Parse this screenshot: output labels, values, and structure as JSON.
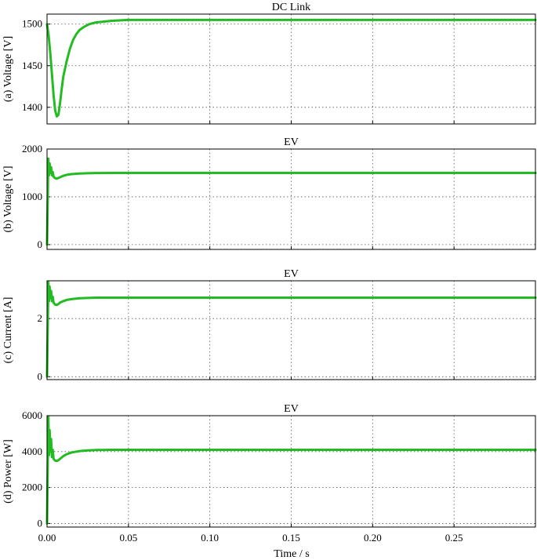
{
  "figure": {
    "xlabel": "Time / s",
    "line_color": "#22bb22"
  },
  "chart_data": [
    {
      "type": "line",
      "title": "DC Link",
      "ylabel": "(a) Voltage [V]",
      "xlim": [
        0,
        0.3
      ],
      "ylim": [
        1380,
        1512
      ],
      "yticks": [
        1400,
        1450,
        1500
      ],
      "xticks": [
        0,
        0.05,
        0.1,
        0.15,
        0.2,
        0.25
      ],
      "xtick_labels": [
        "0.00",
        "0.05",
        "0.10",
        "0.15",
        "0.20",
        "0.25"
      ],
      "grid": true,
      "series": [
        {
          "x": [
            0,
            0.001,
            0.002,
            0.003,
            0.004,
            0.005,
            0.006,
            0.007,
            0.008,
            0.009,
            0.01,
            0.012,
            0.014,
            0.016,
            0.018,
            0.02,
            0.023,
            0.026,
            0.03,
            0.035,
            0.04,
            0.05,
            0.1,
            0.15,
            0.2,
            0.25,
            0.3
          ],
          "y": [
            1500,
            1486,
            1465,
            1440,
            1415,
            1396,
            1389,
            1391,
            1405,
            1422,
            1437,
            1455,
            1470,
            1481,
            1488,
            1493,
            1497,
            1500,
            1502,
            1503,
            1504,
            1505,
            1505,
            1505,
            1505,
            1505,
            1505
          ]
        }
      ]
    },
    {
      "type": "line",
      "title": "EV",
      "ylabel": "(b) Voltage [V]",
      "xlim": [
        0,
        0.3
      ],
      "ylim": [
        -100,
        2000
      ],
      "yticks": [
        0,
        1000,
        2000
      ],
      "xticks": [
        0,
        0.05,
        0.1,
        0.15,
        0.2,
        0.25
      ],
      "xtick_labels": [
        "0.00",
        "0.05",
        "0.10",
        "0.15",
        "0.20",
        "0.25"
      ],
      "grid": true,
      "series": [
        {
          "x": [
            0,
            0.0004,
            0.0008,
            0.0012,
            0.0016,
            0.002,
            0.0025,
            0.003,
            0.0035,
            0.004,
            0.005,
            0.006,
            0.007,
            0.008,
            0.01,
            0.012,
            0.015,
            0.02,
            0.025,
            0.03,
            0.04,
            0.05,
            0.1,
            0.15,
            0.2,
            0.25,
            0.3
          ],
          "y": [
            0,
            900,
            1800,
            1450,
            1700,
            1500,
            1620,
            1450,
            1520,
            1420,
            1390,
            1380,
            1395,
            1410,
            1440,
            1460,
            1475,
            1488,
            1494,
            1497,
            1499,
            1500,
            1500,
            1500,
            1500,
            1500,
            1500
          ]
        }
      ]
    },
    {
      "type": "line",
      "title": "EV",
      "ylabel": "(c) Current [A]",
      "xlim": [
        0,
        0.3
      ],
      "ylim": [
        -0.1,
        3.3
      ],
      "yticks": [
        0,
        2
      ],
      "xticks": [
        0,
        0.05,
        0.1,
        0.15,
        0.2,
        0.25
      ],
      "xtick_labels": [
        "0.00",
        "0.05",
        "0.10",
        "0.15",
        "0.20",
        "0.25"
      ],
      "grid": true,
      "series": [
        {
          "x": [
            0,
            0.0004,
            0.0008,
            0.0012,
            0.0016,
            0.002,
            0.0025,
            0.003,
            0.0035,
            0.004,
            0.005,
            0.006,
            0.007,
            0.008,
            0.01,
            0.012,
            0.015,
            0.02,
            0.025,
            0.03,
            0.04,
            0.05,
            0.1,
            0.15,
            0.2,
            0.25,
            0.3
          ],
          "y": [
            0,
            1.6,
            3.25,
            2.6,
            3.1,
            2.7,
            2.95,
            2.6,
            2.75,
            2.55,
            2.48,
            2.47,
            2.5,
            2.55,
            2.6,
            2.64,
            2.67,
            2.7,
            2.71,
            2.72,
            2.72,
            2.72,
            2.72,
            2.72,
            2.72,
            2.72,
            2.72
          ]
        }
      ]
    },
    {
      "type": "line",
      "title": "EV",
      "ylabel": "(d) Power [W]",
      "xlim": [
        0,
        0.3
      ],
      "ylim": [
        -200,
        6000
      ],
      "yticks": [
        0,
        2000,
        4000,
        6000
      ],
      "xticks": [
        0,
        0.05,
        0.1,
        0.15,
        0.2,
        0.25
      ],
      "xtick_labels": [
        "0.00",
        "0.05",
        "0.10",
        "0.15",
        "0.20",
        "0.25"
      ],
      "grid": true,
      "series": [
        {
          "x": [
            0,
            0.0004,
            0.0008,
            0.0012,
            0.0016,
            0.002,
            0.0025,
            0.003,
            0.0035,
            0.004,
            0.005,
            0.006,
            0.007,
            0.008,
            0.01,
            0.012,
            0.015,
            0.02,
            0.025,
            0.03,
            0.04,
            0.05,
            0.1,
            0.15,
            0.2,
            0.25,
            0.3
          ],
          "y": [
            0,
            3000,
            5950,
            3800,
            5200,
            4000,
            4700,
            3700,
            4100,
            3600,
            3500,
            3480,
            3520,
            3600,
            3750,
            3850,
            3950,
            4030,
            4070,
            4090,
            4100,
            4100,
            4100,
            4100,
            4100,
            4100,
            4100
          ]
        }
      ]
    }
  ]
}
